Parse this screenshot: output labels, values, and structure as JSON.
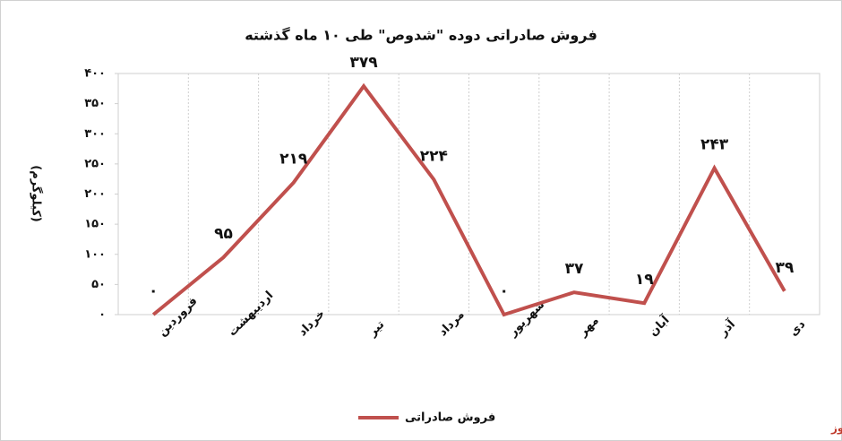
{
  "chart_data": {
    "type": "line",
    "title": "فروش صادراتی دوده \"شدوص\" طی ۱۰ ماه گذشته",
    "y_label": "(کیلوگرم)",
    "source": "بورس نیوز",
    "categories": [
      "فروردین",
      "اردیبهشت",
      "خرداد",
      "تیر",
      "مرداد",
      "شهریور",
      "مهر",
      "آبان",
      "آذر",
      "دی"
    ],
    "series": [
      {
        "name": "فروش صادراتی",
        "color": "#c0504d",
        "values": [
          0,
          95,
          219,
          379,
          224,
          0,
          37,
          19,
          243,
          39
        ],
        "value_labels": [
          "۰",
          "۹۵",
          "۲۱۹",
          "۳۷۹",
          "۲۲۴",
          "۰",
          "۳۷",
          "۱۹",
          "۲۴۳",
          "۳۹"
        ]
      }
    ],
    "ylim": [
      0,
      400
    ],
    "yticks": [
      {
        "value": 0,
        "label": "۰"
      },
      {
        "value": 50,
        "label": "۵۰"
      },
      {
        "value": 100,
        "label": "۱۰۰"
      },
      {
        "value": 150,
        "label": "۱۵۰"
      },
      {
        "value": 200,
        "label": "۲۰۰"
      },
      {
        "value": 250,
        "label": "۲۵۰"
      },
      {
        "value": 300,
        "label": "۳۰۰"
      },
      {
        "value": 350,
        "label": "۳۵۰"
      },
      {
        "value": 400,
        "label": "۴۰۰"
      }
    ],
    "legend": "bottom"
  }
}
